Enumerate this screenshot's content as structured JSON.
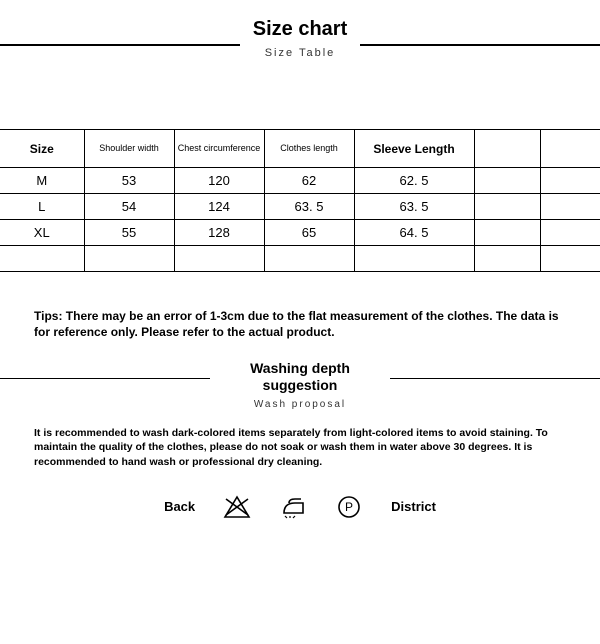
{
  "header": {
    "title": "Size chart",
    "subtitle": "Size Table"
  },
  "table": {
    "columns": [
      "Size",
      "Shoulder width",
      "Chest circumference",
      "Clothes length",
      "Sleeve Length",
      "",
      ""
    ],
    "rows": [
      [
        "M",
        "53",
        "120",
        "62",
        "62. 5",
        "",
        ""
      ],
      [
        "L",
        "54",
        "124",
        "63. 5",
        "63. 5",
        "",
        ""
      ],
      [
        "XL",
        "55",
        "128",
        "65",
        "64. 5",
        "",
        ""
      ],
      [
        "",
        "",
        "",
        "",
        "",
        "",
        ""
      ]
    ],
    "border_color": "#000000",
    "background": "#ffffff"
  },
  "tips": "Tips: There may be an error of 1-3cm due to the flat measurement of the clothes. The data is for reference only. Please refer to the actual product.",
  "wash": {
    "title_line1": "Washing depth",
    "title_line2": "suggestion",
    "subtitle": "Wash proposal",
    "text": "It is recommended to wash dark-colored items separately from light-colored items to avoid staining. To maintain the quality of the clothes, please do not soak or wash them in water above 30 degrees. It is recommended to hand wash or professional dry cleaning."
  },
  "icons": {
    "back_label": "Back",
    "district_label": "District"
  },
  "colors": {
    "text": "#000000",
    "background": "#ffffff"
  }
}
